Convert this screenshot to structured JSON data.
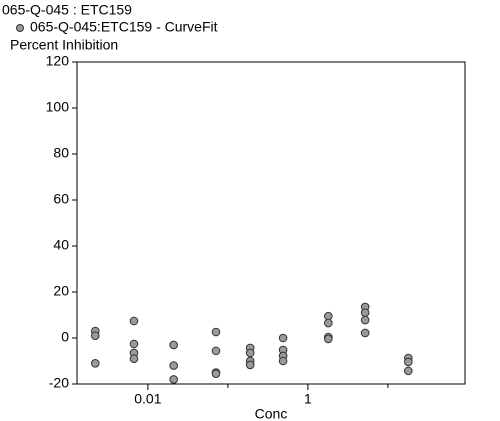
{
  "chart_data": {
    "type": "scatter",
    "title": "065-Q-045  : ETC159",
    "y_label": "Percent Inhibition",
    "x_label": "Conc",
    "x_log": true,
    "xlim": [
      0.0013,
      92
    ],
    "xticks": [
      0.01,
      1
    ],
    "x_minor_ticks": [
      0.1,
      10
    ],
    "ylim": [
      -20,
      120
    ],
    "yticks": [
      -20,
      0,
      20,
      40,
      60,
      80,
      100,
      120
    ],
    "series": [
      {
        "name": "065-Q-045:ETC159 - CurveFit",
        "color": "#9a9a9a",
        "edge_color": "#333333",
        "x": [
          0.0022,
          0.0022,
          0.0022,
          0.0067,
          0.0067,
          0.0067,
          0.0067,
          0.021,
          0.021,
          0.021,
          0.071,
          0.071,
          0.071,
          0.071,
          0.19,
          0.19,
          0.19,
          0.19,
          0.49,
          0.49,
          0.49,
          0.49,
          1.8,
          1.8,
          1.8,
          1.8,
          5.2,
          5.2,
          5.2,
          5.2,
          18,
          18,
          18
        ],
        "y": [
          3,
          1,
          -11,
          7.4,
          -2.6,
          -6.5,
          -9,
          -3,
          -12,
          -18,
          2.6,
          -5.6,
          -15,
          -15.5,
          -4.3,
          -6.5,
          -10,
          -11.7,
          0,
          -5.2,
          -7.8,
          -10,
          9.5,
          6.5,
          0.4,
          -0.4,
          13.5,
          11,
          7.8,
          2.2,
          -8.7,
          -10.4,
          -14.3
        ]
      }
    ]
  }
}
